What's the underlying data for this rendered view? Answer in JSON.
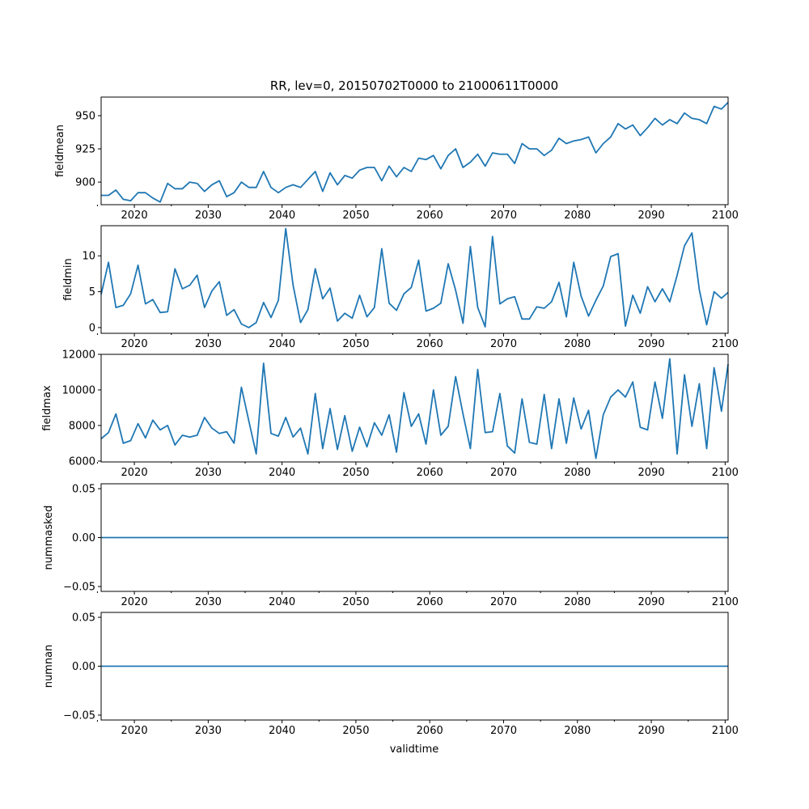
{
  "chart_data": {
    "type": "line",
    "title": "RR, lev=0, 20150702T0000 to 21000611T0000",
    "xlabel": "validtime",
    "xlim": [
      2015.5,
      2100.4
    ],
    "xticks": [
      2020,
      2030,
      2040,
      2050,
      2060,
      2070,
      2080,
      2090,
      2100
    ],
    "xtick_labels": [
      "2020",
      "2030",
      "2040",
      "2050",
      "2060",
      "2070",
      "2080",
      "2090",
      "2100"
    ],
    "line_color": "#1f77b4",
    "x": [
      2015.5,
      2016.5,
      2017.5,
      2018.5,
      2019.5,
      2020.5,
      2021.5,
      2022.5,
      2023.5,
      2024.5,
      2025.5,
      2026.5,
      2027.5,
      2028.5,
      2029.5,
      2030.5,
      2031.5,
      2032.5,
      2033.5,
      2034.5,
      2035.5,
      2036.5,
      2037.5,
      2038.5,
      2039.5,
      2040.5,
      2041.5,
      2042.5,
      2043.5,
      2044.5,
      2045.5,
      2046.5,
      2047.5,
      2048.5,
      2049.5,
      2050.5,
      2051.5,
      2052.5,
      2053.5,
      2054.5,
      2055.5,
      2056.5,
      2057.5,
      2058.5,
      2059.5,
      2060.5,
      2061.5,
      2062.5,
      2063.5,
      2064.5,
      2065.5,
      2066.5,
      2067.5,
      2068.5,
      2069.5,
      2070.5,
      2071.5,
      2072.5,
      2073.5,
      2074.5,
      2075.5,
      2076.5,
      2077.5,
      2078.5,
      2079.5,
      2080.5,
      2081.5,
      2082.5,
      2083.5,
      2084.5,
      2085.5,
      2086.5,
      2087.5,
      2088.5,
      2089.5,
      2090.5,
      2091.5,
      2092.5,
      2093.5,
      2094.5,
      2095.5,
      2096.5,
      2097.5,
      2098.5,
      2099.5,
      2100.4
    ],
    "panels": [
      {
        "name": "fieldmean",
        "ylabel": "fieldmean",
        "ylim": [
          883,
          964
        ],
        "yticks": [
          900,
          925,
          950
        ],
        "ytick_labels": [
          "900",
          "925",
          "950"
        ],
        "values": [
          890,
          890,
          894,
          887,
          886,
          892,
          892,
          888,
          885,
          899,
          895,
          895,
          900,
          899,
          893,
          898,
          901,
          889,
          892,
          900,
          896,
          896,
          908,
          896,
          892,
          896,
          898,
          896,
          902,
          908,
          893,
          907,
          898,
          905,
          903,
          909,
          911,
          911,
          901,
          912,
          904,
          911,
          908,
          918,
          917,
          920,
          910,
          920,
          925,
          911,
          915,
          921,
          912,
          922,
          921,
          921,
          914,
          929,
          925,
          925,
          920,
          924,
          933,
          929,
          931,
          932,
          934,
          922,
          929,
          934,
          944,
          940,
          943,
          935,
          941,
          948,
          943,
          947,
          944,
          952,
          948,
          947,
          944,
          957,
          955,
          960
        ]
      },
      {
        "name": "fieldmin",
        "ylabel": "fieldmin",
        "ylim": [
          -0.8,
          14.2
        ],
        "yticks": [
          0,
          5,
          10
        ],
        "ytick_labels": [
          "0",
          "5",
          "10"
        ],
        "values": [
          4.6,
          9.1,
          2.8,
          3.1,
          4.7,
          8.7,
          3.3,
          3.9,
          2.1,
          2.2,
          8.2,
          5.4,
          5.9,
          7.3,
          2.8,
          5.1,
          6.4,
          1.7,
          2.5,
          0.5,
          0.0,
          0.7,
          3.5,
          1.4,
          3.8,
          13.8,
          5.9,
          0.7,
          2.5,
          8.2,
          4.0,
          5.5,
          0.9,
          2.0,
          1.3,
          4.5,
          1.5,
          2.8,
          11.0,
          3.4,
          2.4,
          4.7,
          5.6,
          9.4,
          2.3,
          2.7,
          3.4,
          8.9,
          5.2,
          0.6,
          11.3,
          2.8,
          0.1,
          12.7,
          3.3,
          4.0,
          4.3,
          1.2,
          1.2,
          2.9,
          2.7,
          3.6,
          6.3,
          1.5,
          9.1,
          4.4,
          1.6,
          3.8,
          5.8,
          9.9,
          10.3,
          0.2,
          4.5,
          2.0,
          5.7,
          3.6,
          5.4,
          3.6,
          7.3,
          11.4,
          13.2,
          5.3,
          0.4,
          5.0,
          4.1,
          4.9
        ]
      },
      {
        "name": "fieldmax",
        "ylabel": "fieldmax",
        "ylim": [
          5950,
          12000
        ],
        "yticks": [
          6000,
          8000,
          10000,
          12000
        ],
        "ytick_labels": [
          "6000",
          "8000",
          "10000",
          "12000"
        ],
        "values": [
          7250,
          7600,
          8650,
          7000,
          7150,
          8100,
          7300,
          8300,
          7750,
          8000,
          6900,
          7450,
          7350,
          7450,
          8450,
          7850,
          7550,
          7650,
          7000,
          10150,
          8250,
          6400,
          11500,
          7550,
          7400,
          8450,
          7350,
          7850,
          6400,
          9800,
          6700,
          8950,
          6650,
          8550,
          6550,
          7900,
          6800,
          8150,
          7450,
          8600,
          6500,
          9850,
          7950,
          8650,
          6950,
          10000,
          7450,
          7950,
          10750,
          8650,
          6700,
          11150,
          7600,
          7650,
          9800,
          6850,
          6450,
          9500,
          7050,
          6950,
          9750,
          6700,
          9500,
          7000,
          9550,
          7800,
          8850,
          6150,
          8600,
          9600,
          10000,
          9600,
          10450,
          7900,
          7750,
          10450,
          8400,
          11750,
          6400,
          10850,
          7950,
          10350,
          6700,
          11250,
          8800,
          11450
        ]
      },
      {
        "name": "nummasked",
        "ylabel": "nummasked",
        "ylim": [
          -0.055,
          0.055
        ],
        "yticks": [
          -0.05,
          0.0,
          0.05
        ],
        "ytick_labels": [
          "−0.05",
          "0.00",
          "0.05"
        ],
        "constant_value": 0.0
      },
      {
        "name": "numnan",
        "ylabel": "numnan",
        "ylim": [
          -0.055,
          0.055
        ],
        "yticks": [
          -0.05,
          0.0,
          0.05
        ],
        "ytick_labels": [
          "−0.05",
          "0.00",
          "0.05"
        ],
        "constant_value": 0.0
      }
    ]
  }
}
